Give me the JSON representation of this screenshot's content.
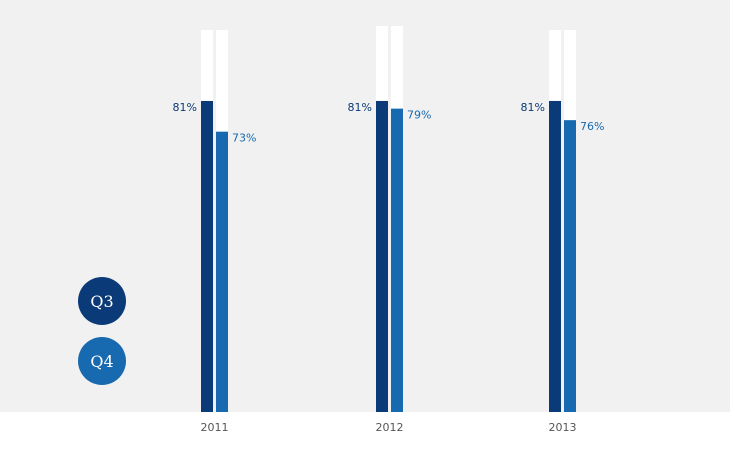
{
  "chart_data": {
    "type": "bar",
    "title": "",
    "xlabel": "",
    "ylabel": "",
    "ylim": [
      0,
      100
    ],
    "grid": false,
    "legend_placement": "bottom-left",
    "categories": [
      "2011",
      "2012",
      "2013"
    ],
    "series": [
      {
        "name": "Q3",
        "values": [
          81,
          81,
          81
        ],
        "labels": [
          "81%",
          "81%",
          "81%"
        ],
        "color": "#0b3a78"
      },
      {
        "name": "Q4",
        "values": [
          73,
          79,
          76
        ],
        "labels": [
          "73%",
          "79%",
          "76%"
        ],
        "color": "#1769b0"
      }
    ],
    "track_color": "#ffffff",
    "background_color": "#f1f1f1"
  }
}
